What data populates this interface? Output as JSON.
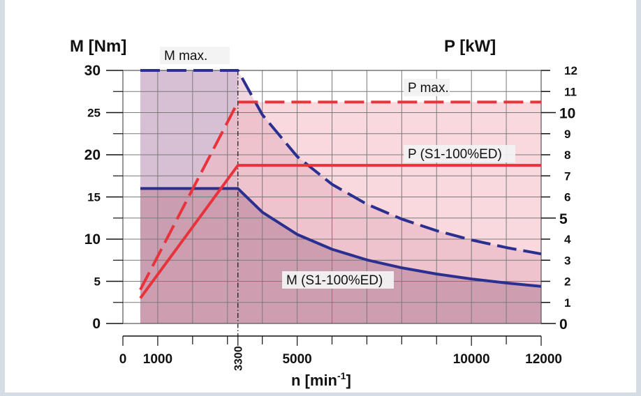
{
  "chart_data": {
    "type": "line",
    "xlabel_base": "n [min",
    "xlabel_sup": "-1",
    "xlabel_close": "]",
    "ylabel_left": "M [Nm]",
    "ylabel_right": "P [kW]",
    "xlim": [
      0,
      12000
    ],
    "ylim_left": [
      0,
      30
    ],
    "ylim_right": [
      0,
      12
    ],
    "x_ticks": [
      {
        "value": 0,
        "label": "0"
      },
      {
        "value": 1000,
        "label": "1000"
      },
      {
        "value": 3300,
        "label": "3300"
      },
      {
        "value": 5000,
        "label": "5000"
      },
      {
        "value": 10000,
        "label": "10000"
      },
      {
        "value": 12000,
        "label": "12000"
      }
    ],
    "y_left_ticks": [
      {
        "value": 0,
        "label": "0"
      },
      {
        "value": 5,
        "label": "5"
      },
      {
        "value": 10,
        "label": "10"
      },
      {
        "value": 15,
        "label": "15"
      },
      {
        "value": 20,
        "label": "20"
      },
      {
        "value": 25,
        "label": "25"
      },
      {
        "value": 30,
        "label": "30"
      }
    ],
    "y_right_ticks": [
      {
        "value": 0,
        "label": "0"
      },
      {
        "value": 1,
        "label": "1"
      },
      {
        "value": 2,
        "label": "2"
      },
      {
        "value": 3,
        "label": "3"
      },
      {
        "value": 4,
        "label": "4"
      },
      {
        "value": 5,
        "label": "5"
      },
      {
        "value": 6,
        "label": "6"
      },
      {
        "value": 7,
        "label": "7"
      },
      {
        "value": 8,
        "label": "8"
      },
      {
        "value": 9,
        "label": "9"
      },
      {
        "value": 10,
        "label": "10"
      },
      {
        "value": 11,
        "label": "11"
      },
      {
        "value": 12,
        "label": "12"
      }
    ],
    "grid": true,
    "series": [
      {
        "name": "M max.",
        "axis": "left",
        "style": "dashed",
        "color": "#2b2f8f",
        "points": [
          [
            500,
            30
          ],
          [
            3300,
            30
          ],
          [
            4000,
            24.75
          ],
          [
            5000,
            19.8
          ],
          [
            6000,
            16.5
          ],
          [
            7000,
            14.14
          ],
          [
            8000,
            12.38
          ],
          [
            9000,
            11
          ],
          [
            10000,
            9.9
          ],
          [
            11000,
            9
          ],
          [
            12000,
            8.25
          ]
        ]
      },
      {
        "name": "M (S1-100%ED)",
        "axis": "left",
        "style": "solid",
        "color": "#2b2f8f",
        "points": [
          [
            500,
            16
          ],
          [
            3300,
            16
          ],
          [
            4000,
            13.2
          ],
          [
            5000,
            10.56
          ],
          [
            6000,
            8.8
          ],
          [
            7000,
            7.54
          ],
          [
            8000,
            6.6
          ],
          [
            9000,
            5.87
          ],
          [
            10000,
            5.28
          ],
          [
            11000,
            4.8
          ],
          [
            12000,
            4.4
          ]
        ]
      },
      {
        "name": "P max.",
        "axis": "right",
        "style": "dashed",
        "color": "#e8323c",
        "points": [
          [
            500,
            1.6
          ],
          [
            3300,
            10.5
          ],
          [
            12000,
            10.5
          ]
        ]
      },
      {
        "name": "P (S1-100%ED)",
        "axis": "right",
        "style": "solid",
        "color": "#e8323c",
        "points": [
          [
            500,
            1.2
          ],
          [
            3300,
            7.5
          ],
          [
            12000,
            7.5
          ]
        ]
      }
    ],
    "annotations": [
      {
        "text": "M max.",
        "series": "M max."
      },
      {
        "text": "P max.",
        "series": "P max."
      },
      {
        "text": "P (S1-100%ED)",
        "series": "P (S1-100%ED)"
      },
      {
        "text": "M (S1-100%ED)",
        "series": "M (S1-100%ED)"
      }
    ],
    "corner_speed": 3300,
    "colors": {
      "torque_line": "#2b2f8f",
      "power_line": "#e8323c",
      "torque_fill": "#c9cde6",
      "power_fill": "#f6c9cf",
      "overlap_fill": "#c99aac",
      "background": "#d4dde3",
      "panel": "#ffffff"
    }
  }
}
